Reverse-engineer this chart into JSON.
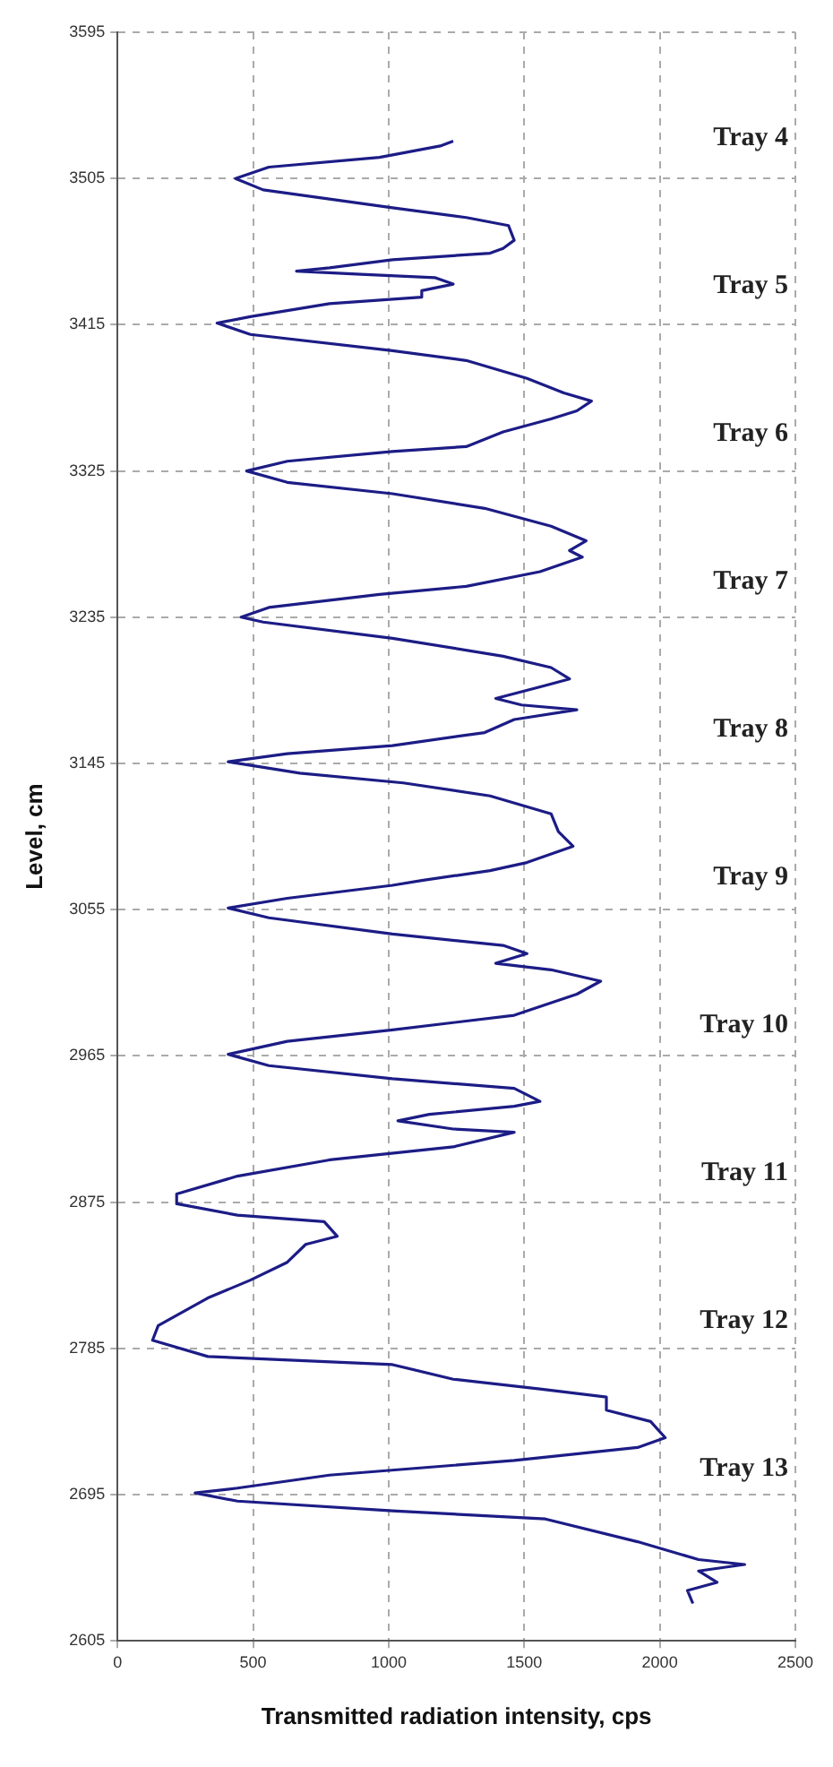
{
  "chart_data": {
    "type": "line",
    "xlabel": "Transmitted radiation intensity, cps",
    "ylabel": "Level, cm",
    "series": [
      {
        "color": "#1c1c86",
        "x": [
          1238,
          1190,
          966,
          558,
          435,
          537,
          1014,
          1286,
          1442,
          1463,
          1422,
          1374,
          1014,
          782,
          660,
          898,
          1170,
          1238,
          1122,
          1122,
          782,
          490,
          367,
          490,
          1014,
          1286,
          1510,
          1646,
          1748,
          1694,
          1599,
          1422,
          1286,
          1014,
          626,
          476,
          626,
          1014,
          1354,
          1599,
          1728,
          1667,
          1714,
          1558,
          1286,
          966,
          558,
          456,
          537,
          1014,
          1422,
          1599,
          1667,
          1578,
          1395,
          1490,
          1694,
          1463,
          1354,
          1014,
          626,
          408,
          673,
          1054,
          1374,
          1599,
          1626,
          1680,
          1510,
          1374,
          1122,
          1014,
          626,
          408,
          558,
          1014,
          1422,
          1510,
          1395,
          1599,
          1782,
          1694,
          1463,
          1014,
          626,
          408,
          558,
          1014,
          1463,
          1558,
          1463,
          1150,
          1034,
          1238,
          1463,
          1238,
          782,
          442,
          218,
          218,
          442,
          762,
          810,
          694,
          626,
          490,
          333,
          150,
          129,
          333,
          1014,
          1238,
          1558,
          1803,
          1803,
          1966,
          2020,
          1918,
          1463,
          782,
          442,
          286,
          442,
          1014,
          1578,
          1918,
          2143,
          2313,
          2143,
          2211,
          2102,
          2122
        ],
        "values": [
          3528,
          3525,
          3518,
          3512,
          3505,
          3498,
          3487,
          3481,
          3476,
          3467,
          3462,
          3459,
          3455,
          3450,
          3448,
          3446,
          3444,
          3440,
          3436,
          3432,
          3428,
          3420,
          3416,
          3409,
          3399,
          3393,
          3382,
          3373,
          3368,
          3362,
          3357,
          3349,
          3340,
          3337,
          3331,
          3325,
          3318,
          3311,
          3302,
          3291,
          3282,
          3276,
          3272,
          3263,
          3254,
          3249,
          3241,
          3235,
          3232,
          3222,
          3211,
          3204,
          3197,
          3193,
          3185,
          3181,
          3178,
          3172,
          3164,
          3156,
          3151,
          3146,
          3139,
          3133,
          3125,
          3114,
          3103,
          3094,
          3084,
          3079,
          3073,
          3070,
          3062,
          3056,
          3050,
          3040,
          3033,
          3028,
          3022,
          3018,
          3011,
          3003,
          2990,
          2981,
          2974,
          2966,
          2959,
          2951,
          2945,
          2937,
          2934,
          2929,
          2925,
          2920,
          2918,
          2909,
          2901,
          2891,
          2880,
          2874,
          2867,
          2863,
          2854,
          2849,
          2838,
          2827,
          2816,
          2799,
          2790,
          2780,
          2775,
          2766,
          2760,
          2755,
          2747,
          2740,
          2730,
          2724,
          2716,
          2707,
          2699,
          2696,
          2691,
          2685,
          2680,
          2666,
          2655,
          2652,
          2648,
          2641,
          2636,
          2628
        ]
      }
    ],
    "xlim": [
      0,
      2500
    ],
    "xticks": [
      0,
      500,
      1000,
      1500,
      2000,
      2500
    ],
    "ylim": [
      2605,
      3595
    ],
    "yticks": [
      2605,
      2695,
      2785,
      2875,
      2965,
      3055,
      3145,
      3235,
      3325,
      3415,
      3505,
      3595
    ],
    "grid": true,
    "marker": "none",
    "line_style": "solid",
    "legend": false,
    "annotations": [
      "Tray 4",
      "Tray 5",
      "Tray 6",
      "Tray 7",
      "Tray 8",
      "Tray 9",
      "Tray 10",
      "Tray 11",
      "Tray 12",
      "Tray 13"
    ]
  }
}
